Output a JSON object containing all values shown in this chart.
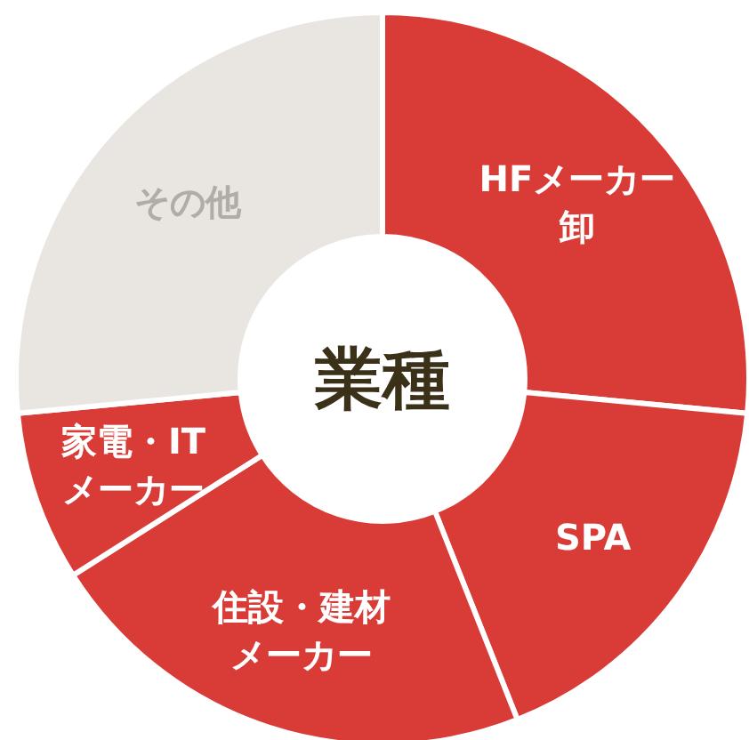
{
  "chart_data": {
    "type": "donut",
    "title": "業種",
    "categories": [
      "HFメーカー卸",
      "SPA",
      "住設・建材メーカー",
      "家電・ITメーカー",
      "その他"
    ],
    "values": [
      26.5,
      17.5,
      22,
      7.5,
      26.5
    ],
    "colors": [
      "#d93b36",
      "#d93b36",
      "#d93b36",
      "#d93b36",
      "#e9e5e1"
    ]
  }
}
